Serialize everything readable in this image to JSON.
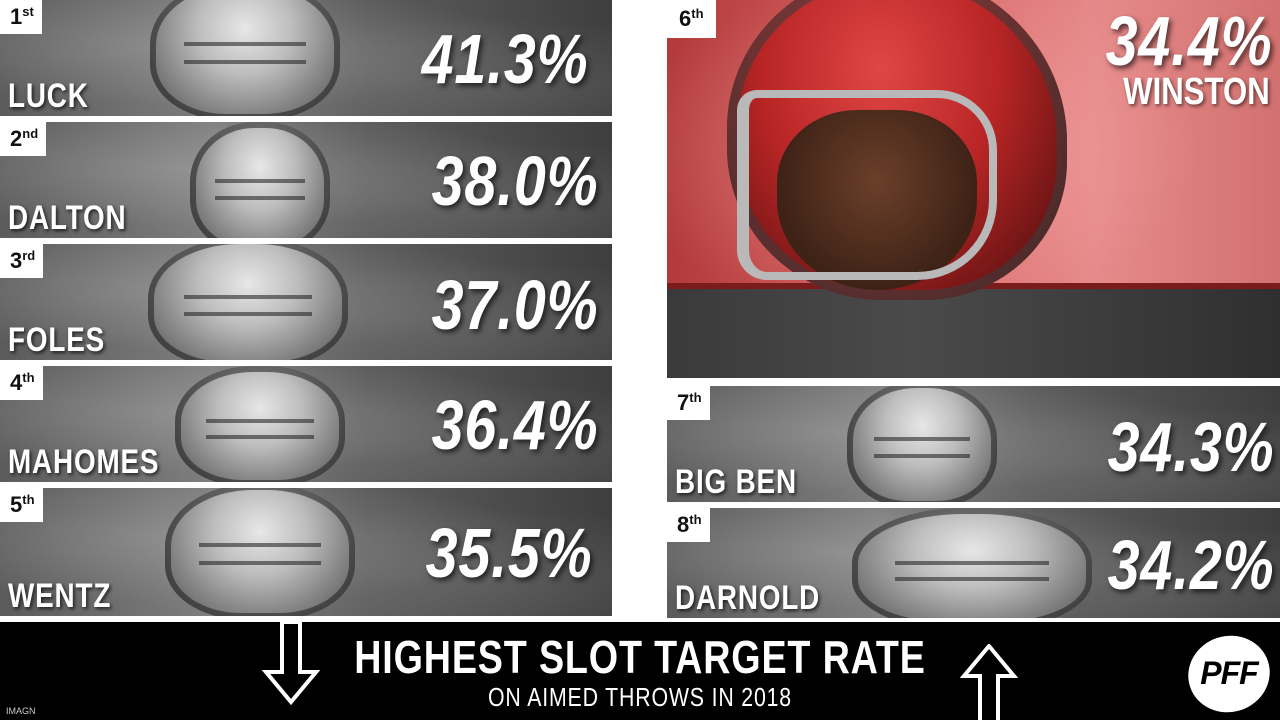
{
  "players": [
    {
      "rank_num": "1",
      "rank_suffix": "st",
      "name": "LUCK",
      "pct": "41.3%"
    },
    {
      "rank_num": "2",
      "rank_suffix": "nd",
      "name": "DALTON",
      "pct": "38.0%"
    },
    {
      "rank_num": "3",
      "rank_suffix": "rd",
      "name": "FOLES",
      "pct": "37.0%"
    },
    {
      "rank_num": "4",
      "rank_suffix": "th",
      "name": "MAHOMES",
      "pct": "36.4%"
    },
    {
      "rank_num": "5",
      "rank_suffix": "th",
      "name": "WENTZ",
      "pct": "35.5%"
    },
    {
      "rank_num": "6",
      "rank_suffix": "th",
      "name": "WINSTON",
      "pct": "34.4%"
    },
    {
      "rank_num": "7",
      "rank_suffix": "th",
      "name": "BIG BEN",
      "pct": "34.3%"
    },
    {
      "rank_num": "8",
      "rank_suffix": "th",
      "name": "DARNOLD",
      "pct": "34.2%"
    }
  ],
  "banner": {
    "title": "HIGHEST SLOT TARGET RATE",
    "subtitle": "ON AIMED THROWS IN 2018",
    "photo_credit": "IMAGN",
    "logo_text": "PFF"
  },
  "colors": {
    "banner_bg": "#000000",
    "text": "#ffffff",
    "winston_accent": "#c94b4b"
  },
  "icons": [
    "arrow-down-icon",
    "arrow-up-icon",
    "pff-logo"
  ]
}
